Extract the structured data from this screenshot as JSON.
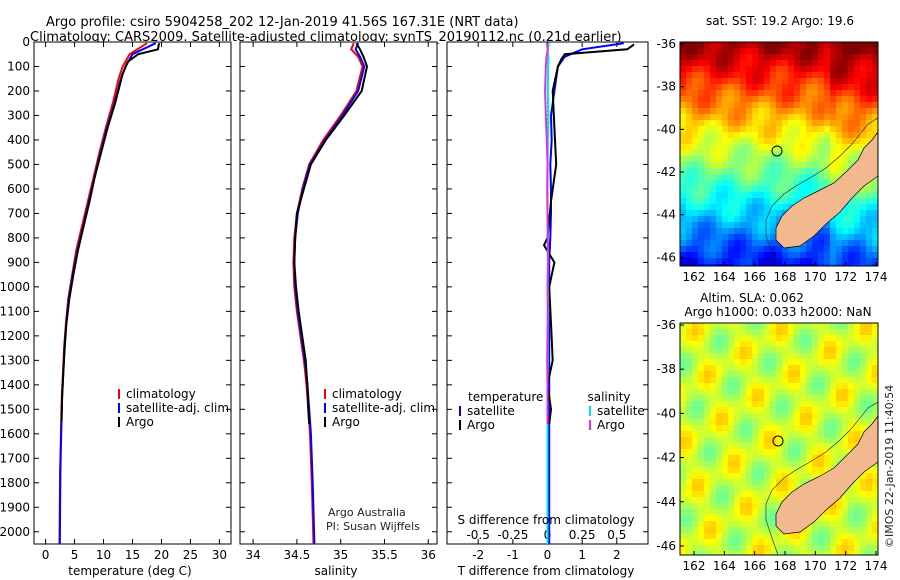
{
  "title_line1": "Argo profile: csiro 5904258_202 12-Jan-2019 41.56S 167.31E (NRT data)",
  "title_line2": "Climatology: CARS2009. Satellite-adjusted climatology: synTS_20190112.nc (0.21d earlier)",
  "credit_line1": "Argo Australia",
  "credit_line2": "PI: Susan Wijffels",
  "watermark": "©IMOS 22-Jan-2019 11:40:54",
  "map_sst": {
    "title": "sat. SST: 19.2 Argo: 19.6",
    "lat_ticks": [
      "-36",
      "-38",
      "-40",
      "-42",
      "-44",
      "-46"
    ],
    "lon_ticks": [
      "162",
      "164",
      "166",
      "168",
      "170",
      "172",
      "174"
    ]
  },
  "map_sla": {
    "title1": "Altim. SLA: 0.062",
    "title2": "Argo h1000: 0.033 h2000: NaN",
    "lat_ticks": [
      "-36",
      "-38",
      "-40",
      "-42",
      "-44",
      "-46"
    ],
    "lon_ticks": [
      "162",
      "164",
      "166",
      "168",
      "170",
      "172",
      "174"
    ]
  },
  "colors": {
    "climatology": "#ff0000",
    "satellite": "#0000ff",
    "argo": "#000000",
    "sal_satellite": "#00e5e5",
    "sal_argo": "#e030e0",
    "land": "#f2b98f"
  },
  "chart_data": [
    {
      "type": "line",
      "name": "temperature",
      "xlabel": "temperature (deg C)",
      "ylabel": "",
      "xlim": [
        -2,
        32
      ],
      "ylim": [
        2050,
        0
      ],
      "xticks": [
        0,
        5,
        10,
        15,
        20,
        25,
        30
      ],
      "yticks": [
        0,
        100,
        200,
        300,
        400,
        500,
        600,
        700,
        800,
        900,
        1000,
        1100,
        1200,
        1300,
        1400,
        1500,
        1600,
        1700,
        1800,
        1900,
        2000
      ],
      "legend": [
        "climatology",
        "satellite-adj. clim.",
        "Argo"
      ],
      "legend_position": "bottom-right",
      "series": [
        {
          "name": "climatology",
          "color": "#ff0000",
          "x": [
            17.5,
            14.5,
            13.3,
            12.6,
            11.6,
            10.4,
            9.3,
            8.3,
            7.3,
            6.3,
            5.3,
            4.6,
            3.9,
            3.5,
            3.2,
            3.0,
            2.8,
            2.7,
            2.6,
            2.5,
            2.45,
            2.4
          ],
          "y": [
            5,
            50,
            100,
            150,
            250,
            350,
            450,
            550,
            650,
            750,
            850,
            950,
            1050,
            1150,
            1250,
            1350,
            1450,
            1550,
            1650,
            1750,
            1900,
            2050
          ]
        },
        {
          "name": "satellite-adj. clim.",
          "color": "#0000ff",
          "x": [
            19.0,
            15.0,
            13.8,
            13.0,
            11.9,
            10.6,
            9.5,
            8.5,
            7.5,
            6.5,
            5.5,
            4.7,
            4.0,
            3.55,
            3.25,
            3.05,
            2.85,
            2.75,
            2.65,
            2.55,
            2.5,
            2.45
          ],
          "y": [
            5,
            50,
            100,
            150,
            250,
            350,
            450,
            550,
            650,
            750,
            850,
            950,
            1050,
            1150,
            1250,
            1350,
            1450,
            1550,
            1650,
            1750,
            1900,
            2050
          ]
        },
        {
          "name": "Argo",
          "color": "#000000",
          "x": [
            19.6,
            19.5,
            19.4,
            16.0,
            14.2,
            13.3,
            12.0,
            10.7,
            9.6,
            8.5,
            7.6,
            6.6,
            5.6,
            4.8,
            4.1,
            3.6,
            3.3,
            3.05,
            2.85,
            2.75
          ],
          "y": [
            5,
            15,
            30,
            50,
            80,
            130,
            250,
            350,
            450,
            550,
            650,
            750,
            850,
            950,
            1050,
            1150,
            1250,
            1350,
            1450,
            1550
          ]
        }
      ]
    },
    {
      "type": "line",
      "name": "salinity",
      "xlabel": "salinity",
      "ylabel": "",
      "xlim": [
        33.85,
        36.1
      ],
      "ylim": [
        2050,
        0
      ],
      "xticks": [
        34,
        34.5,
        35,
        35.5,
        36
      ],
      "tick_labels": [
        "34",
        "34.5",
        "35",
        "35.5",
        "36"
      ],
      "legend": [
        "climatology",
        "satellite-adj. clim.",
        "Argo"
      ],
      "legend_position": "bottom-right",
      "series": [
        {
          "name": "climatology",
          "color": "#ff0000",
          "x": [
            35.15,
            35.12,
            35.2,
            35.25,
            35.18,
            35.0,
            34.8,
            34.64,
            34.56,
            34.5,
            34.47,
            34.46,
            34.47,
            34.5,
            34.54,
            34.58,
            34.61,
            34.63,
            34.65,
            34.67,
            34.69
          ],
          "y": [
            5,
            30,
            60,
            100,
            200,
            300,
            400,
            500,
            600,
            700,
            800,
            900,
            1000,
            1100,
            1200,
            1300,
            1400,
            1500,
            1600,
            1800,
            2050
          ]
        },
        {
          "name": "satellite-adj. clim.",
          "color": "#0000ff",
          "x": [
            35.2,
            35.17,
            35.22,
            35.27,
            35.2,
            35.02,
            34.82,
            34.65,
            34.57,
            34.51,
            34.48,
            34.47,
            34.48,
            34.51,
            34.55,
            34.59,
            34.62,
            34.64,
            34.66,
            34.68,
            34.7
          ],
          "y": [
            5,
            30,
            60,
            100,
            200,
            300,
            400,
            500,
            600,
            700,
            800,
            900,
            1000,
            1100,
            1200,
            1300,
            1400,
            1500,
            1600,
            1800,
            2050
          ]
        },
        {
          "name": "Argo",
          "color": "#000000",
          "x": [
            35.18,
            35.22,
            35.26,
            35.3,
            35.24,
            35.04,
            34.83,
            34.66,
            34.58,
            34.5,
            34.48,
            34.47,
            34.49,
            34.52,
            34.56,
            34.6,
            34.62,
            34.63,
            34.64
          ],
          "y": [
            5,
            30,
            60,
            100,
            200,
            300,
            400,
            500,
            600,
            700,
            800,
            900,
            1000,
            1100,
            1200,
            1300,
            1400,
            1500,
            1560
          ]
        }
      ]
    },
    {
      "type": "line",
      "name": "difference from climatology",
      "xlabel": "T difference from climatology",
      "xlabel_top": "S difference from climatology",
      "xlim": [
        -2.9,
        2.9
      ],
      "ylim": [
        2050,
        0
      ],
      "xticks": [
        -2,
        -1,
        0,
        1,
        2
      ],
      "top_ticks": [
        "-0.5",
        "-0.25",
        "0",
        "0.25",
        "0.5"
      ],
      "legend_left_header": "temperature",
      "legend_right_header": "salinity",
      "legend": [
        "satellite",
        "Argo",
        "satellite",
        "Argo"
      ],
      "legend_position": "bottom",
      "series": [
        {
          "name": "temperature satellite",
          "color": "#0000ff",
          "x": [
            2.2,
            1.0,
            0.5,
            0.3,
            0.2,
            0.1,
            0.12,
            0.08,
            0.1,
            0.1,
            0.08,
            0.05,
            0.05,
            0.05,
            0.05,
            0.05,
            0.05,
            0.05,
            0.05,
            0.05,
            0.05,
            0.05
          ],
          "y": [
            5,
            30,
            60,
            100,
            200,
            300,
            400,
            500,
            600,
            700,
            800,
            900,
            1000,
            1100,
            1200,
            1300,
            1400,
            1500,
            1600,
            1800,
            2000,
            2050
          ]
        },
        {
          "name": "temperature Argo",
          "color": "#000000",
          "x": [
            2.5,
            2.3,
            0.5,
            0.4,
            0.3,
            0.15,
            0.2,
            0.25,
            0.1,
            0.0,
            -0.1,
            0.2,
            0.05,
            0.1,
            0.15,
            0.0,
            0.1,
            0.05
          ],
          "y": [
            10,
            30,
            50,
            70,
            100,
            200,
            350,
            500,
            650,
            800,
            830,
            900,
            1000,
            1150,
            1300,
            1400,
            1500,
            1560
          ]
        },
        {
          "name": "salinity satellite",
          "color": "#00e5e5",
          "x": [
            0.05,
            0.0,
            0.03,
            0.02,
            0.01,
            0.03,
            0.01,
            0.0,
            0.0,
            0.0,
            0.01,
            0.01,
            0.01,
            0.02,
            0.01,
            0.01,
            0.0,
            0.0,
            0.0,
            0.0
          ],
          "y": [
            5,
            30,
            60,
            100,
            200,
            300,
            400,
            500,
            600,
            700,
            800,
            900,
            1000,
            1100,
            1200,
            1300,
            1400,
            1500,
            1800,
            2050
          ]
        },
        {
          "name": "salinity Argo",
          "color": "#e030e0",
          "x": [
            -0.02,
            0.01,
            -0.03,
            -0.05,
            -0.07,
            -0.05,
            -0.02,
            0.0,
            -0.01,
            0.0,
            0.01,
            0.02,
            0.0,
            0.01,
            0.0,
            -0.01,
            0.0,
            0.0
          ],
          "y": [
            5,
            30,
            60,
            100,
            200,
            300,
            400,
            500,
            600,
            700,
            800,
            900,
            1000,
            1100,
            1200,
            1300,
            1400,
            1560
          ]
        }
      ]
    }
  ]
}
